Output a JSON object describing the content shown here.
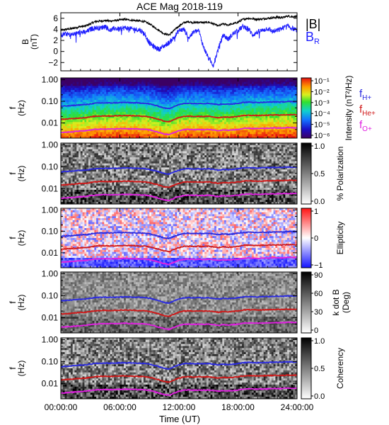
{
  "chart_data": {
    "type": "spectrogram",
    "title": "ACE Mag 2018-119",
    "xlabel": "Time (UT)",
    "x_ticks": [
      "00:00:00",
      "06:00:00",
      "12:00:00",
      "18:00:00",
      "24:00:00"
    ],
    "x_range_hours": [
      0,
      24
    ],
    "panels": [
      {
        "id": "field",
        "type": "line",
        "ylabel_lines": [
          "B",
          "(nT)"
        ],
        "ylim": [
          -3.5,
          7
        ],
        "y_ticks": [
          -2,
          0,
          2,
          4,
          6
        ],
        "legend": [
          "|B|",
          "BR"
        ],
        "series": [
          {
            "name": "|B|",
            "color": "#000000",
            "x": [
              0,
              0.5,
              1,
              1.5,
              2,
              2.5,
              3,
              3.5,
              4,
              4.5,
              5,
              5.5,
              6,
              6.5,
              7,
              7.5,
              8,
              8.5,
              9,
              9.5,
              10,
              10.5,
              11,
              11.5,
              12,
              12.5,
              13,
              13.5,
              14,
              14.5,
              15,
              15.5,
              16,
              16.5,
              17,
              17.5,
              18,
              18.5,
              19,
              19.5,
              20,
              20.5,
              21,
              21.5,
              22,
              22.5,
              23,
              23.5,
              24
            ],
            "values": [
              3.8,
              4.0,
              4.1,
              4.3,
              4.5,
              4.6,
              5.0,
              5.4,
              5.5,
              5.6,
              5.5,
              5.6,
              5.7,
              5.8,
              5.7,
              5.6,
              5.5,
              5.4,
              5.0,
              4.4,
              3.8,
              3.2,
              3.0,
              3.8,
              4.6,
              5.2,
              5.4,
              5.2,
              5.3,
              5.2,
              5.3,
              5.0,
              4.6,
              5.0,
              4.8,
              5.0,
              5.3,
              5.8,
              6.0,
              5.9,
              5.8,
              5.9,
              6.0,
              6.1,
              6.2,
              6.1,
              6.4,
              6.3,
              6.3
            ]
          },
          {
            "name": "BR",
            "color": "#1f1fff",
            "x": [
              0,
              0.5,
              1,
              1.5,
              2,
              2.5,
              3,
              3.5,
              4,
              4.5,
              5,
              5.5,
              6,
              6.5,
              7,
              7.5,
              8,
              8.5,
              9,
              9.5,
              10,
              10.5,
              11,
              11.5,
              12,
              12.5,
              13,
              13.5,
              14,
              14.5,
              15,
              15.5,
              16,
              16.5,
              17,
              17.5,
              18,
              18.5,
              19,
              19.5,
              20,
              20.5,
              21,
              21.5,
              22,
              22.5,
              23,
              23.5,
              24
            ],
            "values": [
              3.0,
              3.2,
              3.0,
              3.2,
              3.5,
              3.4,
              4.0,
              4.3,
              4.2,
              4.6,
              3.8,
              4.2,
              4.0,
              4.3,
              4.1,
              4.0,
              3.9,
              3.2,
              1.5,
              0.8,
              0.4,
              1.0,
              1.6,
              2.5,
              3.8,
              4.0,
              2.5,
              3.5,
              3.8,
              0.8,
              -1.2,
              -2.5,
              0.5,
              3.0,
              2.2,
              3.2,
              3.8,
              4.5,
              4.2,
              3.0,
              3.5,
              3.8,
              4.2,
              3.6,
              3.8,
              4.2,
              4.6,
              4.2,
              3.8
            ]
          }
        ]
      },
      {
        "id": "intensity",
        "type": "heatmap",
        "ylabel_lines": [
          "f",
          "(Hz)"
        ],
        "y_scale": "log",
        "ylim": [
          0.002,
          1.2
        ],
        "y_ticks": [
          "1.00",
          "0.10",
          "0.01"
        ],
        "colorbar": {
          "label": "Intensity (nT²/Hz)",
          "scale": "log",
          "range": [
            1e-06,
            0.3
          ],
          "ticks": [
            "10⁻¹",
            "10⁻²",
            "10⁻³",
            "10⁻⁴",
            "10⁻⁵",
            "10⁻⁶"
          ],
          "colormap": "rainbow"
        }
      },
      {
        "id": "polarization",
        "type": "heatmap",
        "ylabel_lines": [
          "f",
          "(Hz)"
        ],
        "y_scale": "log",
        "ylim": [
          0.002,
          1.2
        ],
        "y_ticks": [
          "1.00",
          "0.10",
          "0.01"
        ],
        "colorbar": {
          "label": "% Polarization",
          "range": [
            0,
            1
          ],
          "ticks": [
            "1.0",
            "0.5",
            "0.0"
          ],
          "colormap": "grayscale"
        }
      },
      {
        "id": "ellipticity",
        "type": "heatmap",
        "ylabel_lines": [
          "f",
          "(Hz)"
        ],
        "y_scale": "log",
        "ylim": [
          0.002,
          1.2
        ],
        "y_ticks": [
          "1.00",
          "0.10",
          "0.01"
        ],
        "colorbar": {
          "label": "Ellipticity",
          "range": [
            -1,
            1
          ],
          "ticks": [
            "1",
            "0",
            "−1"
          ],
          "colormap": "blue-white-red"
        }
      },
      {
        "id": "kdotb",
        "type": "heatmap",
        "ylabel_lines": [
          "f",
          "(Hz)"
        ],
        "y_scale": "log",
        "ylim": [
          0.002,
          1.2
        ],
        "y_ticks": [
          "1.00",
          "0.10",
          "0.01"
        ],
        "colorbar": {
          "label_lines": [
            "k dot B",
            "(Deg)"
          ],
          "range": [
            0,
            90
          ],
          "ticks": [
            "90",
            "60",
            "30",
            "0"
          ],
          "colormap": "grayscale"
        }
      },
      {
        "id": "coherency",
        "type": "heatmap",
        "ylabel_lines": [
          "f",
          "(Hz)"
        ],
        "y_scale": "log",
        "ylim": [
          0.002,
          1.2
        ],
        "y_ticks": [
          "1.00",
          "0.10",
          "0.01"
        ],
        "colorbar": {
          "label": "Coherency",
          "range": [
            0,
            1
          ],
          "ticks": [
            "1.0",
            "0.5",
            "0.0"
          ],
          "colormap": "grayscale"
        }
      }
    ],
    "gyrofrequency_lines": {
      "legend": [
        {
          "base": "f",
          "sub": "H+",
          "color": "#2a2ae0"
        },
        {
          "base": "f",
          "sub": "He+",
          "color": "#d01818"
        },
        {
          "base": "f",
          "sub": "O+",
          "color": "#e020e0"
        }
      ],
      "x": [
        0,
        0.5,
        1,
        1.5,
        2,
        2.5,
        3,
        3.5,
        4,
        4.5,
        5,
        5.5,
        6,
        6.5,
        7,
        7.5,
        8,
        8.5,
        9,
        9.5,
        10,
        10.5,
        11,
        11.5,
        12,
        12.5,
        13,
        13.5,
        14,
        14.5,
        15,
        15.5,
        16,
        16.5,
        17,
        17.5,
        18,
        18.5,
        19,
        19.5,
        20,
        20.5,
        21,
        21.5,
        22,
        22.5,
        23,
        23.5,
        24
      ],
      "H+": [
        0.058,
        0.061,
        0.062,
        0.066,
        0.069,
        0.07,
        0.076,
        0.082,
        0.084,
        0.085,
        0.084,
        0.085,
        0.087,
        0.088,
        0.087,
        0.085,
        0.084,
        0.082,
        0.076,
        0.067,
        0.058,
        0.049,
        0.046,
        0.058,
        0.07,
        0.079,
        0.082,
        0.079,
        0.081,
        0.079,
        0.081,
        0.076,
        0.07,
        0.076,
        0.073,
        0.076,
        0.081,
        0.088,
        0.091,
        0.09,
        0.088,
        0.09,
        0.091,
        0.093,
        0.094,
        0.093,
        0.097,
        0.096,
        0.096
      ],
      "He+": [
        0.0145,
        0.0152,
        0.0156,
        0.0164,
        0.0171,
        0.0175,
        0.019,
        0.0205,
        0.0209,
        0.0213,
        0.0209,
        0.0213,
        0.0217,
        0.022,
        0.0217,
        0.0213,
        0.0209,
        0.0205,
        0.019,
        0.0167,
        0.0145,
        0.0122,
        0.0114,
        0.0145,
        0.0175,
        0.0198,
        0.0205,
        0.0198,
        0.0202,
        0.0198,
        0.0202,
        0.019,
        0.0175,
        0.019,
        0.0183,
        0.019,
        0.0202,
        0.022,
        0.0228,
        0.0224,
        0.022,
        0.0224,
        0.0228,
        0.0232,
        0.0236,
        0.0232,
        0.0243,
        0.0239,
        0.0239
      ],
      "O+": [
        0.0036,
        0.0038,
        0.0039,
        0.0041,
        0.0043,
        0.0044,
        0.0048,
        0.0051,
        0.0052,
        0.0053,
        0.0052,
        0.0053,
        0.0054,
        0.0055,
        0.0054,
        0.0053,
        0.0052,
        0.0051,
        0.0048,
        0.0042,
        0.0036,
        0.0031,
        0.0029,
        0.0036,
        0.0044,
        0.0049,
        0.0051,
        0.0049,
        0.005,
        0.0049,
        0.005,
        0.0048,
        0.0044,
        0.0048,
        0.0046,
        0.0048,
        0.005,
        0.0055,
        0.0057,
        0.0056,
        0.0055,
        0.0056,
        0.0057,
        0.0058,
        0.0059,
        0.0058,
        0.0061,
        0.006,
        0.006
      ]
    }
  }
}
